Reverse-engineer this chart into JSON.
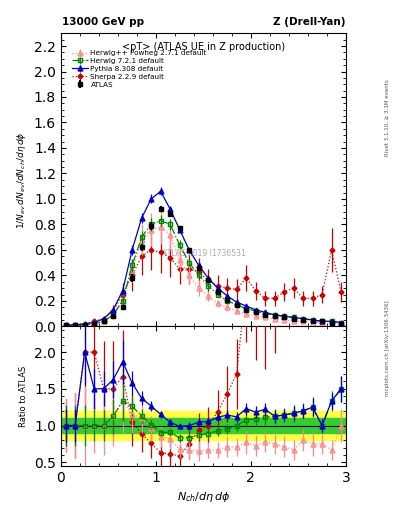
{
  "title_top": "13000 GeV pp",
  "title_right": "Z (Drell-Yan)",
  "subtitle": "<pT> (ATLAS UE in Z production)",
  "xlabel": "N_{ch}/d\\eta d\\phi",
  "ylabel_main": "1/N_{ev} dN_{ev}/dN_{ch}/d\\eta d\\phi",
  "ylabel_ratio": "Ratio to ATLAS",
  "watermark": "ATLAS 2019 I1736531",
  "rivet_label": "Rivet 3.1.10, ≥ 3.1M events",
  "arxiv_label": "mcplots.cern.ch [arXiv:1306.3436]",
  "atlas_x": [
    0.05,
    0.15,
    0.25,
    0.35,
    0.45,
    0.55,
    0.65,
    0.75,
    0.85,
    0.95,
    1.05,
    1.15,
    1.25,
    1.35,
    1.45,
    1.55,
    1.65,
    1.75,
    1.85,
    1.95,
    2.05,
    2.15,
    2.25,
    2.35,
    2.45,
    2.55,
    2.65,
    2.75,
    2.85,
    2.95
  ],
  "atlas_y": [
    0.01,
    0.01,
    0.01,
    0.02,
    0.04,
    0.08,
    0.15,
    0.38,
    0.62,
    0.79,
    0.92,
    0.88,
    0.77,
    0.6,
    0.46,
    0.36,
    0.27,
    0.21,
    0.17,
    0.13,
    0.11,
    0.09,
    0.08,
    0.07,
    0.06,
    0.05,
    0.04,
    0.04,
    0.03,
    0.02
  ],
  "atlas_yerr": [
    0.002,
    0.002,
    0.002,
    0.003,
    0.005,
    0.01,
    0.02,
    0.03,
    0.03,
    0.03,
    0.025,
    0.025,
    0.02,
    0.018,
    0.015,
    0.012,
    0.01,
    0.009,
    0.008,
    0.007,
    0.006,
    0.005,
    0.005,
    0.004,
    0.004,
    0.003,
    0.003,
    0.003,
    0.002,
    0.002
  ],
  "herwig_powheg_x": [
    0.05,
    0.15,
    0.25,
    0.35,
    0.45,
    0.55,
    0.65,
    0.75,
    0.85,
    0.95,
    1.05,
    1.15,
    1.25,
    1.35,
    1.45,
    1.55,
    1.65,
    1.75,
    1.85,
    1.95,
    2.05,
    2.15,
    2.25,
    2.35,
    2.45,
    2.55,
    2.65,
    2.75,
    2.85,
    2.95
  ],
  "herwig_powheg_y": [
    0.01,
    0.01,
    0.01,
    0.02,
    0.04,
    0.09,
    0.2,
    0.44,
    0.68,
    0.76,
    0.78,
    0.72,
    0.52,
    0.4,
    0.3,
    0.24,
    0.18,
    0.15,
    0.12,
    0.1,
    0.08,
    0.07,
    0.06,
    0.05,
    0.04,
    0.04,
    0.03,
    0.03,
    0.02,
    0.02
  ],
  "herwig_powheg_yerr": [
    0.003,
    0.004,
    0.005,
    0.007,
    0.015,
    0.03,
    0.06,
    0.09,
    0.12,
    0.13,
    0.13,
    0.12,
    0.09,
    0.07,
    0.06,
    0.04,
    0.03,
    0.03,
    0.02,
    0.02,
    0.015,
    0.012,
    0.01,
    0.01,
    0.008,
    0.007,
    0.006,
    0.005,
    0.004,
    0.004
  ],
  "herwig721_x": [
    0.05,
    0.15,
    0.25,
    0.35,
    0.45,
    0.55,
    0.65,
    0.75,
    0.85,
    0.95,
    1.05,
    1.15,
    1.25,
    1.35,
    1.45,
    1.55,
    1.65,
    1.75,
    1.85,
    1.95,
    2.05,
    2.15,
    2.25,
    2.35,
    2.45,
    2.55,
    2.65,
    2.75,
    2.85,
    2.95
  ],
  "herwig721_y": [
    0.01,
    0.01,
    0.01,
    0.02,
    0.04,
    0.09,
    0.2,
    0.48,
    0.7,
    0.8,
    0.83,
    0.8,
    0.64,
    0.5,
    0.4,
    0.32,
    0.25,
    0.2,
    0.17,
    0.14,
    0.12,
    0.1,
    0.09,
    0.08,
    0.07,
    0.06,
    0.05,
    0.04,
    0.04,
    0.03
  ],
  "herwig721_yerr": [
    0.002,
    0.002,
    0.002,
    0.003,
    0.007,
    0.015,
    0.03,
    0.05,
    0.05,
    0.05,
    0.045,
    0.04,
    0.035,
    0.028,
    0.022,
    0.018,
    0.015,
    0.012,
    0.01,
    0.009,
    0.008,
    0.007,
    0.006,
    0.005,
    0.005,
    0.004,
    0.004,
    0.003,
    0.003,
    0.002
  ],
  "pythia_x": [
    0.05,
    0.15,
    0.25,
    0.35,
    0.45,
    0.55,
    0.65,
    0.75,
    0.85,
    0.95,
    1.05,
    1.15,
    1.25,
    1.35,
    1.45,
    1.55,
    1.65,
    1.75,
    1.85,
    1.95,
    2.05,
    2.15,
    2.25,
    2.35,
    2.45,
    2.55,
    2.65,
    2.75,
    2.85,
    2.95
  ],
  "pythia_y": [
    0.01,
    0.01,
    0.02,
    0.03,
    0.06,
    0.13,
    0.28,
    0.6,
    0.85,
    1.0,
    1.06,
    0.92,
    0.76,
    0.6,
    0.48,
    0.38,
    0.3,
    0.24,
    0.19,
    0.16,
    0.13,
    0.11,
    0.09,
    0.08,
    0.07,
    0.06,
    0.05,
    0.04,
    0.04,
    0.03
  ],
  "pythia_yerr": [
    0.001,
    0.001,
    0.002,
    0.003,
    0.006,
    0.012,
    0.025,
    0.04,
    0.04,
    0.035,
    0.03,
    0.025,
    0.02,
    0.018,
    0.015,
    0.012,
    0.01,
    0.009,
    0.007,
    0.006,
    0.005,
    0.005,
    0.004,
    0.004,
    0.003,
    0.003,
    0.003,
    0.002,
    0.002,
    0.002
  ],
  "sherpa_x": [
    0.05,
    0.15,
    0.25,
    0.35,
    0.45,
    0.55,
    0.65,
    0.75,
    0.85,
    0.95,
    1.05,
    1.15,
    1.25,
    1.35,
    1.45,
    1.55,
    1.65,
    1.75,
    1.85,
    1.95,
    2.05,
    2.15,
    2.25,
    2.35,
    2.45,
    2.55,
    2.65,
    2.75,
    2.85,
    2.95
  ],
  "sherpa_y": [
    0.01,
    0.01,
    0.02,
    0.04,
    0.06,
    0.12,
    0.25,
    0.4,
    0.55,
    0.6,
    0.58,
    0.54,
    0.45,
    0.45,
    0.43,
    0.36,
    0.32,
    0.3,
    0.29,
    0.38,
    0.28,
    0.22,
    0.22,
    0.27,
    0.3,
    0.22,
    0.22,
    0.25,
    0.6,
    0.27
  ],
  "sherpa_yerr": [
    0.003,
    0.004,
    0.007,
    0.015,
    0.025,
    0.05,
    0.09,
    0.12,
    0.15,
    0.16,
    0.16,
    0.15,
    0.12,
    0.12,
    0.11,
    0.09,
    0.08,
    0.08,
    0.08,
    0.1,
    0.07,
    0.06,
    0.06,
    0.07,
    0.08,
    0.06,
    0.06,
    0.07,
    0.17,
    0.08
  ],
  "xlim": [
    0.0,
    3.0
  ],
  "ylim_main": [
    0.0,
    2.3
  ],
  "ylim_ratio": [
    0.45,
    2.35
  ],
  "color_atlas": "#000000",
  "color_herwig_powheg": "#ff8888",
  "color_herwig721": "#008800",
  "color_pythia": "#0000cc",
  "color_sherpa": "#cc0000",
  "color_band_green": "#33cc33",
  "color_band_yellow": "#ffff44",
  "legend_atlas": "ATLAS",
  "legend_herwig_powheg": "Herwig++ Powheg 2.7.1 default",
  "legend_herwig721": "Herwig 7.2.1 default",
  "legend_pythia": "Pythia 8.308 default",
  "legend_sherpa": "Sherpa 2.2.9 default"
}
